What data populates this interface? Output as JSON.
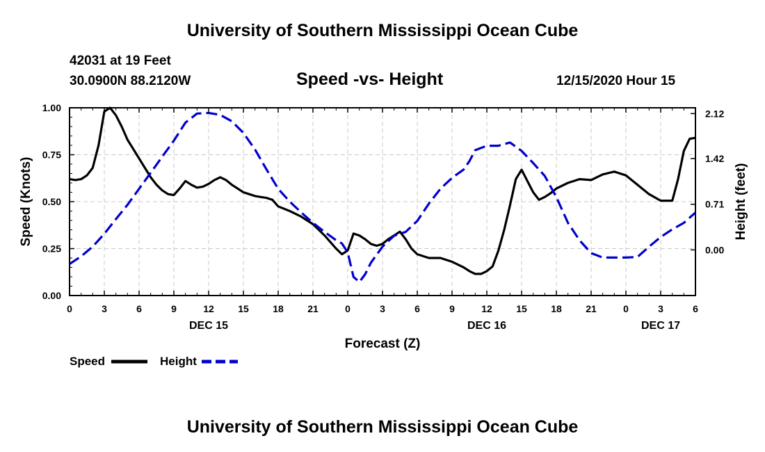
{
  "header": {
    "title": "University of Southern Mississippi Ocean Cube",
    "station": "42031 at 19 Feet",
    "coords": "30.0900N 88.2120W",
    "subtitle": "Speed -vs- Height",
    "datetime": "12/15/2020 Hour 15"
  },
  "footer": {
    "title": "University of Southern Mississippi Ocean Cube"
  },
  "chart_data": {
    "type": "line",
    "title": "Speed -vs- Height",
    "xlabel": "Forecast (Z)",
    "ylabel": "Speed (Knots)",
    "y2label": "Height (feet)",
    "xlim": [
      0,
      54
    ],
    "ylim": [
      0,
      1
    ],
    "y2lim": [
      -0.71,
      2.21
    ],
    "grid": true,
    "legend_position": "bottom-left",
    "x_ticks": [
      0,
      3,
      6,
      9,
      12,
      15,
      18,
      21,
      24,
      27,
      30,
      33,
      36,
      39,
      42,
      45,
      48,
      51,
      54
    ],
    "x_tick_labels": [
      "0",
      "3",
      "6",
      "9",
      "12",
      "15",
      "18",
      "21",
      "0",
      "3",
      "6",
      "9",
      "12",
      "15",
      "18",
      "21",
      "0",
      "3",
      "6"
    ],
    "day_labels": [
      {
        "x": 12,
        "label": "DEC 15"
      },
      {
        "x": 36,
        "label": "DEC 16"
      },
      {
        "x": 51,
        "label": "DEC 17"
      }
    ],
    "y_ticks": [
      0.0,
      0.25,
      0.5,
      0.75,
      1.0
    ],
    "y_tick_labels": [
      "0.00",
      "0.25",
      "0.50",
      "0.75",
      "1.00"
    ],
    "y2_ticks": [
      0.0,
      0.71,
      1.42,
      2.12
    ],
    "y2_tick_labels": [
      "0.00",
      "0.71",
      "1.42",
      "2.12"
    ],
    "series": [
      {
        "name": "Speed",
        "axis": "left",
        "color": "#000000",
        "style": "solid",
        "x": [
          0,
          0.5,
          1,
          1.5,
          2,
          2.5,
          3,
          3.5,
          4,
          4.5,
          5,
          5.5,
          6,
          6.5,
          7,
          7.5,
          8,
          8.5,
          9,
          9.5,
          10,
          10.5,
          11,
          11.5,
          12,
          12.5,
          13,
          13.5,
          14,
          14.5,
          15,
          15.5,
          16,
          16.5,
          17,
          17.5,
          18,
          19,
          20,
          21,
          22,
          23,
          23.5,
          24,
          24.5,
          25,
          25.5,
          26,
          26.5,
          27,
          27.5,
          28,
          28.5,
          29,
          29.5,
          30,
          31,
          32,
          33,
          34,
          34.5,
          35,
          35.5,
          36,
          36.5,
          37,
          37.5,
          38,
          38.5,
          39,
          39.5,
          40,
          40.5,
          41,
          41.5,
          42,
          43,
          44,
          45,
          46,
          47,
          48,
          49,
          50,
          51,
          52,
          52.5,
          53,
          53.5,
          54
        ],
        "values": [
          0.62,
          0.615,
          0.62,
          0.64,
          0.68,
          0.8,
          0.98,
          1.0,
          0.96,
          0.9,
          0.83,
          0.78,
          0.73,
          0.68,
          0.63,
          0.59,
          0.56,
          0.54,
          0.535,
          0.57,
          0.61,
          0.59,
          0.575,
          0.58,
          0.595,
          0.615,
          0.63,
          0.615,
          0.59,
          0.57,
          0.55,
          0.54,
          0.53,
          0.525,
          0.52,
          0.51,
          0.475,
          0.45,
          0.42,
          0.38,
          0.32,
          0.25,
          0.22,
          0.24,
          0.33,
          0.32,
          0.3,
          0.275,
          0.265,
          0.275,
          0.3,
          0.32,
          0.34,
          0.3,
          0.25,
          0.22,
          0.2,
          0.2,
          0.18,
          0.15,
          0.13,
          0.115,
          0.115,
          0.13,
          0.155,
          0.24,
          0.35,
          0.48,
          0.62,
          0.67,
          0.61,
          0.55,
          0.51,
          0.525,
          0.545,
          0.57,
          0.6,
          0.62,
          0.615,
          0.645,
          0.66,
          0.64,
          0.59,
          0.54,
          0.505,
          0.505,
          0.62,
          0.77,
          0.835,
          0.84
        ]
      },
      {
        "name": "Height",
        "axis": "right",
        "color": "#0000cc",
        "style": "dashed",
        "x": [
          0,
          1,
          2,
          3,
          4,
          5,
          6,
          7,
          8,
          9,
          10,
          11,
          12,
          13,
          14,
          15,
          16,
          17,
          18,
          19,
          20,
          21,
          22,
          23,
          23.5,
          24,
          24.5,
          25,
          25.5,
          26,
          27,
          28,
          29,
          30,
          31,
          32,
          33,
          34,
          34.5,
          35,
          36,
          37,
          38,
          39,
          40,
          41,
          42,
          43,
          44,
          45,
          46,
          47,
          48,
          49,
          50,
          51,
          52,
          53,
          54
        ],
        "values": [
          -0.22,
          -0.1,
          0.05,
          0.25,
          0.48,
          0.7,
          0.95,
          1.2,
          1.45,
          1.7,
          1.98,
          2.12,
          2.13,
          2.1,
          2.0,
          1.82,
          1.56,
          1.25,
          0.95,
          0.75,
          0.58,
          0.42,
          0.28,
          0.15,
          0.1,
          -0.04,
          -0.42,
          -0.5,
          -0.38,
          -0.2,
          0.05,
          0.22,
          0.28,
          0.45,
          0.72,
          0.95,
          1.12,
          1.25,
          1.38,
          1.55,
          1.62,
          1.62,
          1.67,
          1.54,
          1.35,
          1.15,
          0.82,
          0.42,
          0.15,
          -0.05,
          -0.12,
          -0.12,
          -0.12,
          -0.11,
          0.05,
          0.2,
          0.32,
          0.42,
          0.58
        ]
      }
    ]
  }
}
